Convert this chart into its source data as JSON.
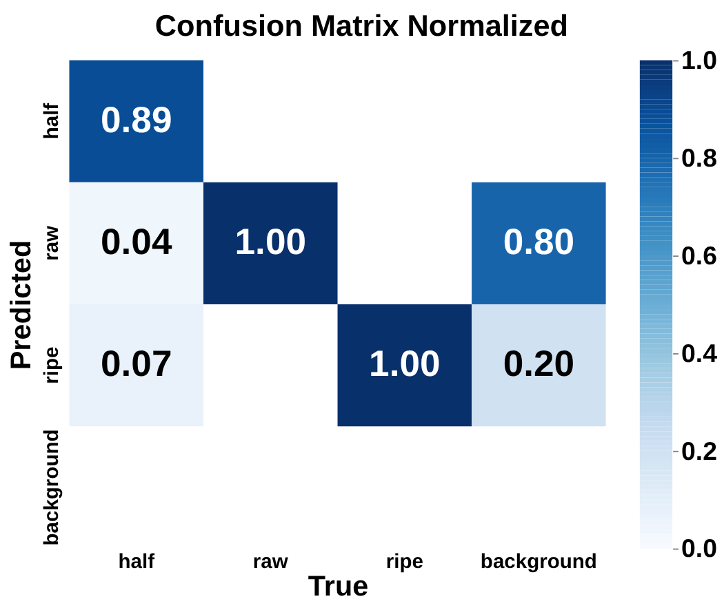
{
  "chart_data": {
    "type": "heatmap",
    "title": "Confusion Matrix Normalized",
    "xlabel": "True",
    "ylabel": "Predicted",
    "categories": [
      "half",
      "raw",
      "ripe",
      "background"
    ],
    "y_categories": [
      "half",
      "raw",
      "ripe",
      "background"
    ],
    "cells": [
      [
        0.89,
        null,
        null,
        null
      ],
      [
        0.04,
        1.0,
        null,
        0.8
      ],
      [
        0.07,
        null,
        1.0,
        0.2
      ],
      [
        null,
        null,
        null,
        null
      ]
    ],
    "cell_labels": [
      [
        "0.89",
        null,
        null,
        null
      ],
      [
        "0.04",
        "1.00",
        null,
        "0.80"
      ],
      [
        "0.07",
        null,
        "1.00",
        "0.20"
      ],
      [
        null,
        null,
        null,
        null
      ]
    ],
    "clim": [
      0,
      1
    ],
    "cticks": [
      {
        "value": 0,
        "label": "0.0"
      },
      0.2,
      0.4,
      0.6,
      0.8,
      {
        "value": 1,
        "label": "1.0"
      }
    ],
    "grid": false
  }
}
